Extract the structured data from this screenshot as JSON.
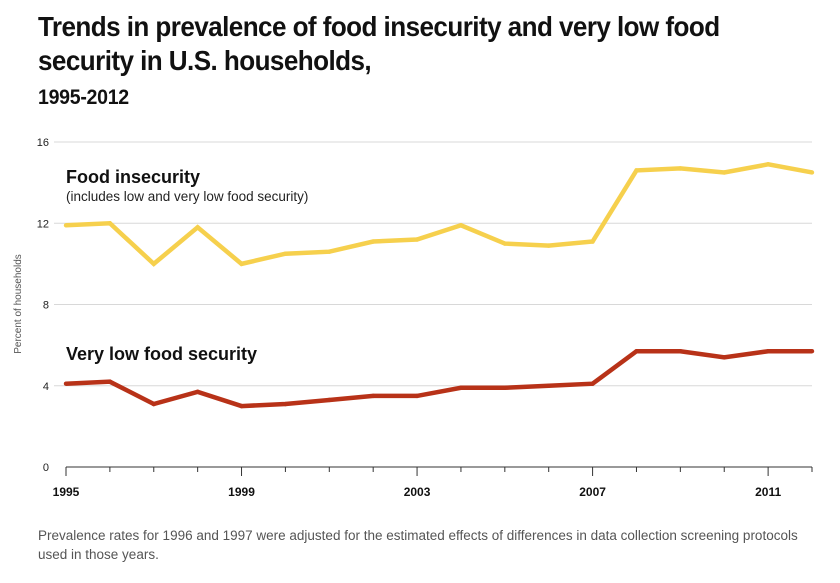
{
  "header": {
    "title": "Trends in prevalence of food insecurity and very low food security in U.S. households,",
    "subtitle": "1995-2012"
  },
  "footnote": "Prevalence rates for 1996 and 1997 were adjusted for the estimated effects of differences in data collection screening protocols used in those years.",
  "colors": {
    "food_insecurity": "#F6D04D",
    "very_low": "#B83218",
    "grid": "#d8d8d8"
  },
  "chart_data": {
    "type": "line",
    "title": "Trends in prevalence of food insecurity and very low food security in U.S. households, 1995-2012",
    "xlabel": "",
    "ylabel": "Percent of households",
    "ylim": [
      0,
      16
    ],
    "yticks": [
      0,
      4,
      8,
      12,
      16
    ],
    "xlim": [
      1995,
      2012
    ],
    "xticks": [
      1995,
      1999,
      2003,
      2007,
      2011
    ],
    "grid": true,
    "x": [
      1995,
      1996,
      1997,
      1998,
      1999,
      2000,
      2001,
      2002,
      2003,
      2004,
      2005,
      2006,
      2007,
      2008,
      2009,
      2010,
      2011,
      2012
    ],
    "series": [
      {
        "name": "Food insecurity",
        "note": "(includes low and very low food security)",
        "color": "#F6D04D",
        "values": [
          11.9,
          12.0,
          10.0,
          11.8,
          10.0,
          10.5,
          10.6,
          11.1,
          11.2,
          11.9,
          11.0,
          10.9,
          11.1,
          14.6,
          14.7,
          14.5,
          14.9,
          14.5
        ]
      },
      {
        "name": "Very low food security",
        "note": "",
        "color": "#B83218",
        "values": [
          4.1,
          4.2,
          3.1,
          3.7,
          3.0,
          3.1,
          3.3,
          3.5,
          3.5,
          3.9,
          3.9,
          4.0,
          4.1,
          5.7,
          5.7,
          5.4,
          5.7,
          5.7
        ]
      }
    ]
  }
}
